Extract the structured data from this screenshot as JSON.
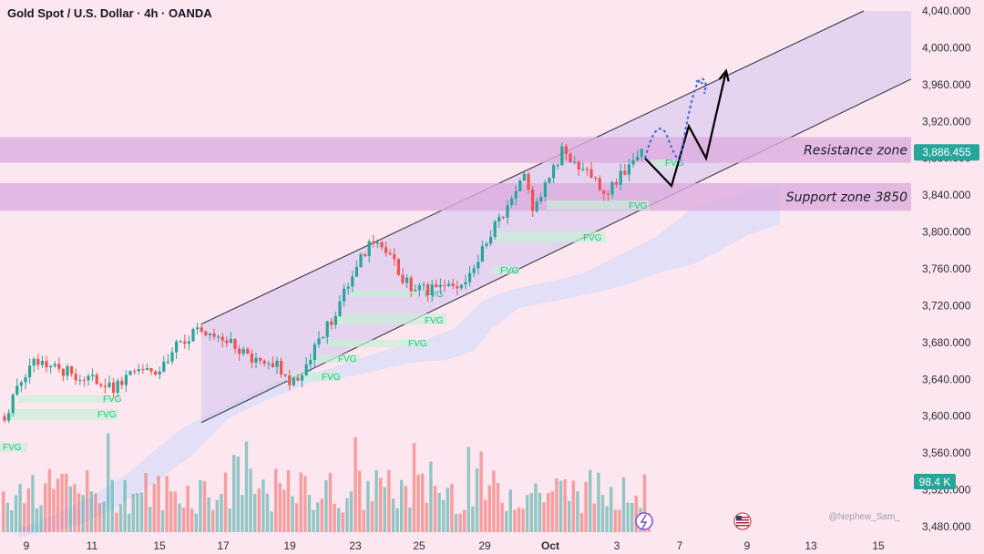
{
  "header": {
    "title": "Gold Spot / U.S. Dollar · 4h · OANDA"
  },
  "watermark": "@Nephew_Sam_",
  "colors": {
    "up": "#26a69a",
    "down": "#ef5350",
    "zone": "#dcaede",
    "channel": "#d6c6ee",
    "fvg": "#c8f0d8",
    "price_badge": "#26a69a",
    "volume_badge": "#26a69a"
  },
  "icons": [
    "lightning-icon",
    "us-flag-icon"
  ],
  "chart_data": {
    "type": "candlestick",
    "symbol": "Gold Spot / U.S. Dollar",
    "interval": "4h",
    "exchange": "OANDA",
    "y_ticks": [
      "4,040.000",
      "4,000.000",
      "3,960.000",
      "3,920.000",
      "3,880.000",
      "3,840.000",
      "3,800.000",
      "3,760.000",
      "3,720.000",
      "3,680.000",
      "3,640.000",
      "3,600.000",
      "3,560.000",
      "3,520.000",
      "3,480.000"
    ],
    "y_values": [
      4040,
      4000,
      3960,
      3920,
      3880,
      3840,
      3800,
      3760,
      3720,
      3680,
      3640,
      3600,
      3560,
      3520,
      3480
    ],
    "ylim": [
      3476,
      4048
    ],
    "x_ticks": [
      "9",
      "11",
      "15",
      "17",
      "19",
      "23",
      "25",
      "29",
      "Oct",
      "3",
      "7",
      "9",
      "13",
      "15"
    ],
    "current_price": "3,886.455",
    "current_value": 3886.455,
    "volume_label": "98.4 K",
    "zones": [
      {
        "label": "Resistance zone",
        "low": 3875,
        "high": 3903
      },
      {
        "label": "Support zone 3850",
        "low": 3823,
        "high": 3853
      }
    ],
    "channel": {
      "upper_start": [
        221,
        3700
      ],
      "upper_end": [
        948,
        4040
      ],
      "lower_start": [
        221,
        3593
      ],
      "lower_end": [
        1000,
        3966
      ]
    },
    "fvg_labels": [
      "FVG",
      "FVG",
      "FVG",
      "FVG",
      "FVG",
      "FVG",
      "FVG",
      "FVG",
      "FVG",
      "FVG",
      "FVG"
    ],
    "projection_solid": [
      [
        708,
        3880
      ],
      [
        737,
        3850
      ],
      [
        756,
        3915
      ],
      [
        775,
        3880
      ],
      [
        797,
        3975
      ]
    ],
    "projection_dotted": [
      [
        708,
        3880
      ],
      [
        731,
        3907
      ],
      [
        747,
        3880
      ],
      [
        775,
        3960
      ]
    ],
    "close_path": [
      [
        5,
        3600
      ],
      [
        18,
        3628
      ],
      [
        35,
        3658
      ],
      [
        55,
        3652
      ],
      [
        75,
        3648
      ],
      [
        100,
        3640
      ],
      [
        125,
        3630
      ],
      [
        145,
        3652
      ],
      [
        175,
        3645
      ],
      [
        195,
        3682
      ],
      [
        215,
        3690
      ],
      [
        230,
        3693
      ],
      [
        250,
        3680
      ],
      [
        270,
        3665
      ],
      [
        285,
        3660
      ],
      [
        300,
        3660
      ],
      [
        318,
        3638
      ],
      [
        332,
        3645
      ],
      [
        350,
        3680
      ],
      [
        370,
        3715
      ],
      [
        390,
        3760
      ],
      [
        410,
        3790
      ],
      [
        430,
        3768
      ],
      [
        450,
        3740
      ],
      [
        470,
        3735
      ],
      [
        490,
        3740
      ],
      [
        510,
        3750
      ],
      [
        525,
        3770
      ],
      [
        540,
        3800
      ],
      [
        560,
        3830
      ],
      [
        577,
        3870
      ],
      [
        585,
        3820
      ],
      [
        600,
        3850
      ],
      [
        618,
        3890
      ],
      [
        632,
        3868
      ],
      [
        650,
        3860
      ],
      [
        666,
        3842
      ],
      [
        682,
        3862
      ],
      [
        700,
        3880
      ],
      [
        708,
        3888
      ]
    ]
  }
}
